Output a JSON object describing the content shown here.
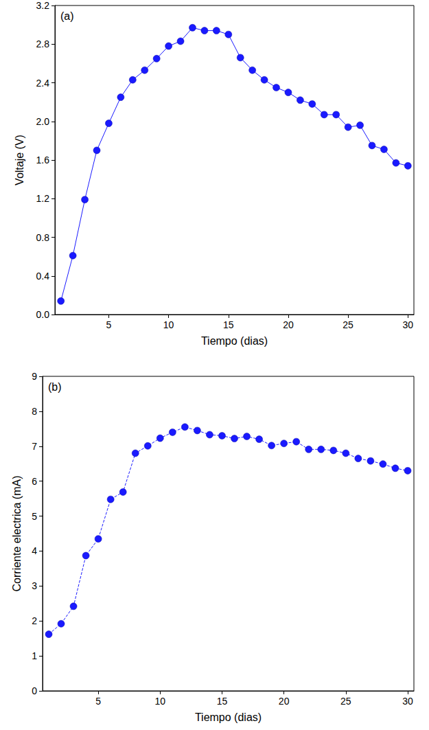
{
  "chart_data": [
    {
      "type": "line",
      "title": "(a)",
      "x_label": "Tiempo (dias)",
      "y_label": "Voltaje (V)",
      "x": [
        1,
        2,
        3,
        4,
        5,
        6,
        7,
        8,
        9,
        10,
        11,
        12,
        13,
        14,
        15,
        16,
        17,
        18,
        19,
        20,
        21,
        22,
        23,
        24,
        25,
        26,
        27,
        28,
        29,
        30
      ],
      "values": [
        0.14,
        0.61,
        1.19,
        1.7,
        1.98,
        2.25,
        2.43,
        2.53,
        2.65,
        2.78,
        2.83,
        2.97,
        2.94,
        2.94,
        2.9,
        2.66,
        2.53,
        2.43,
        2.35,
        2.3,
        2.22,
        2.18,
        2.07,
        2.07,
        1.94,
        1.96,
        1.75,
        1.71,
        1.57,
        1.54
      ],
      "color": "#1a1aff",
      "marker": "circle",
      "line_style": "solid",
      "xlim": [
        0.5,
        30.5
      ],
      "xticks": [
        5,
        10,
        15,
        20,
        25,
        30
      ],
      "ylim": [
        0,
        3.2
      ],
      "yticks": [
        {
          "value": 0,
          "label": "0.0"
        },
        0.4,
        0.8,
        1.2,
        1.6,
        {
          "value": 2,
          "label": "2.0"
        },
        2.4,
        2.8,
        3.2
      ],
      "grid": false
    },
    {
      "type": "line",
      "title": "(b)",
      "x_label": "Tiempo (dias)",
      "y_label": "Corriente electrica (mA)",
      "x": [
        1,
        2,
        3,
        4,
        5,
        6,
        7,
        8,
        9,
        10,
        11,
        12,
        13,
        14,
        15,
        16,
        17,
        18,
        19,
        20,
        21,
        22,
        23,
        24,
        25,
        26,
        27,
        28,
        29,
        30
      ],
      "values": [
        1.62,
        1.92,
        2.42,
        3.87,
        4.35,
        5.48,
        5.69,
        6.8,
        7.01,
        7.23,
        7.4,
        7.55,
        7.45,
        7.33,
        7.3,
        7.22,
        7.28,
        7.2,
        7.02,
        7.08,
        7.13,
        6.91,
        6.91,
        6.88,
        6.8,
        6.65,
        6.58,
        6.49,
        6.37,
        6.3
      ],
      "color": "#1a1aff",
      "marker": "circle",
      "line_style": "dashed",
      "xlim": [
        0.5,
        30.5
      ],
      "xticks": [
        5,
        10,
        15,
        20,
        25,
        30
      ],
      "ylim": [
        0,
        9
      ],
      "yticks": [
        0,
        1,
        2,
        3,
        4,
        5,
        6,
        7,
        8,
        9
      ],
      "grid": false
    }
  ]
}
